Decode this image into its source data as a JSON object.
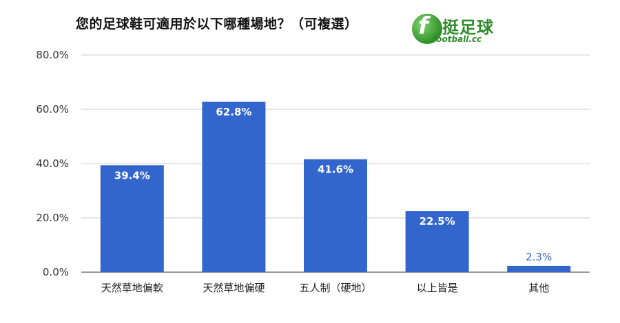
{
  "chart_data": {
    "type": "bar",
    "title": "您的足球鞋可適用於以下哪種場地？（可複選）",
    "categories": [
      "天然草地偏軟",
      "天然草地偏硬",
      "五人制（硬地）",
      "以上皆是",
      "其他"
    ],
    "values": [
      39.4,
      62.8,
      41.6,
      22.5,
      2.3
    ],
    "value_labels": [
      "39.4%",
      "62.8%",
      "41.6%",
      "22.5%",
      "2.3%"
    ],
    "y_ticks": [
      {
        "value": 0,
        "label": "0.0%"
      },
      {
        "value": 20,
        "label": "20.0%"
      },
      {
        "value": 40,
        "label": "40.0%"
      },
      {
        "value": 60,
        "label": "60.0%"
      },
      {
        "value": 80,
        "label": "80.0%"
      }
    ],
    "ylim": [
      0,
      80
    ],
    "xlabel": "",
    "ylabel": "",
    "grid": true,
    "legend": "none",
    "bar_color": "#3366cc",
    "label_inside_color": "#ffffff",
    "label_outside_color": "#3366cc"
  },
  "logo": {
    "mark": "f",
    "chinese": "挺足球",
    "english": "football.cc",
    "color": "#2e8b2a"
  }
}
